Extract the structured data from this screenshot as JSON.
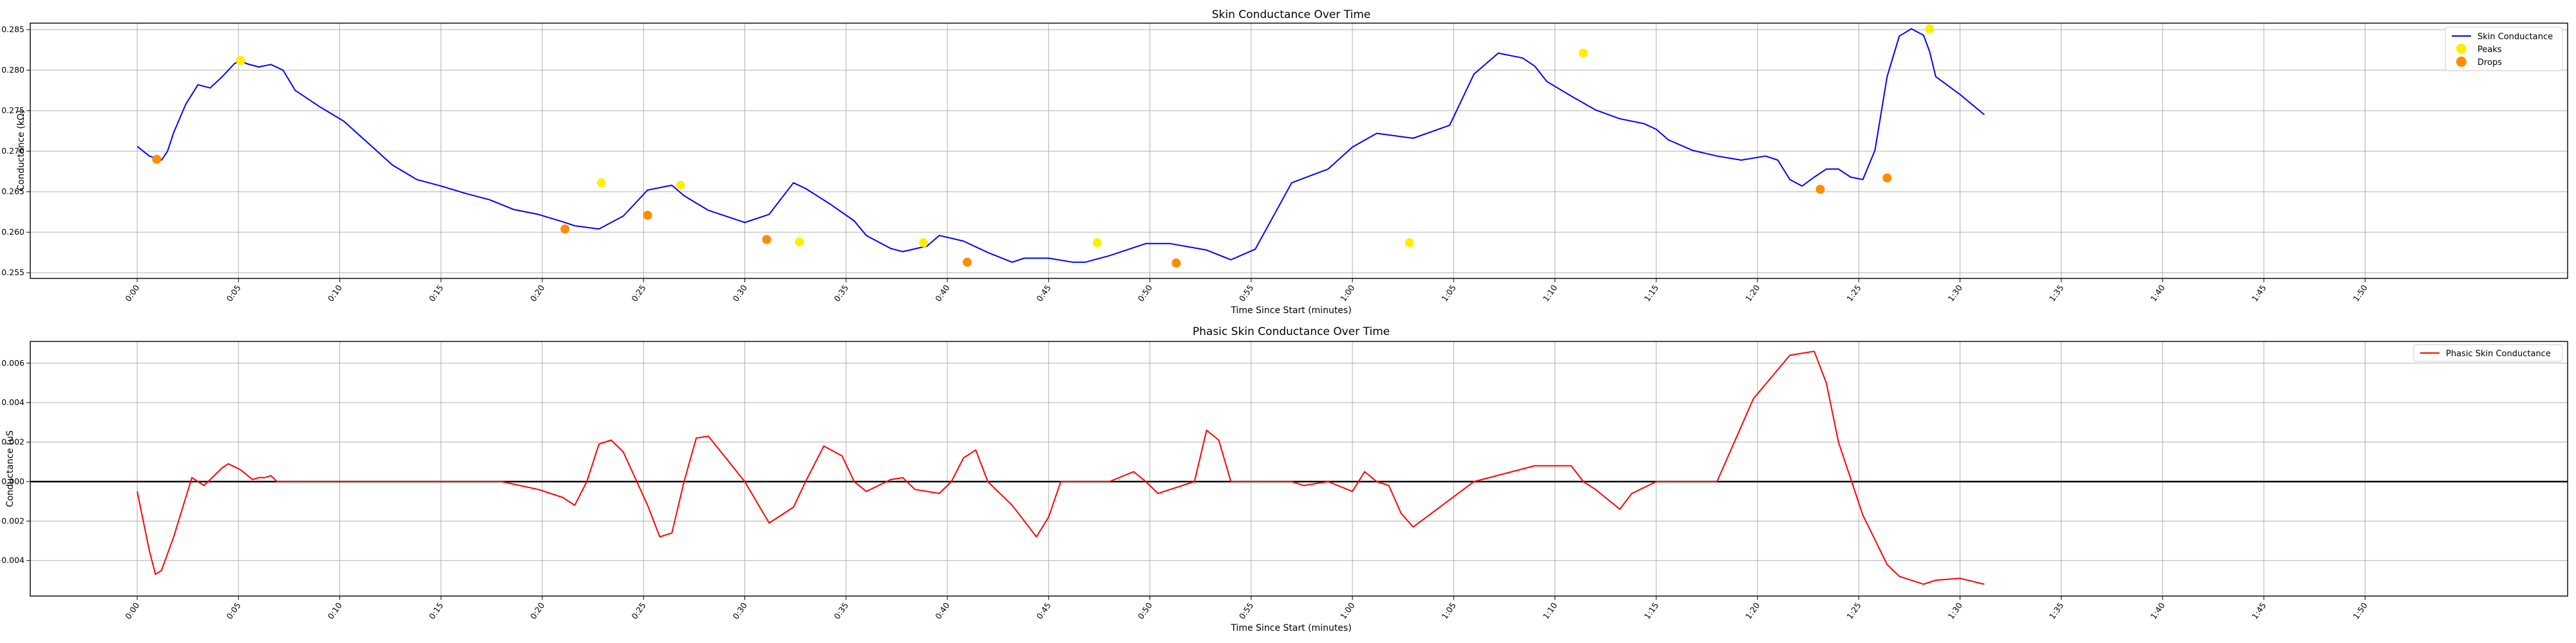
{
  "chart_data": [
    {
      "type": "line",
      "title": "Skin Conductance Over Time",
      "xlabel": "Time Since Start (minutes)",
      "ylabel": "Conductance (kΩ)",
      "xlim": [
        -0.088,
        2.0
      ],
      "ylim": [
        0.2543,
        0.2858
      ],
      "grid": true,
      "legend": "top-right",
      "x_ticks": [
        "0:00",
        "0:05",
        "0:10",
        "0:15",
        "0:20",
        "0:25",
        "0:30",
        "0:35",
        "0:40",
        "0:45",
        "0:50",
        "0:55",
        "1:00",
        "1:05",
        "1:10",
        "1:15",
        "1:20",
        "1:25",
        "1:30",
        "1:35",
        "1:40",
        "1:45",
        "1:50"
      ],
      "y_ticks": [
        "0.255",
        "0.260",
        "0.265",
        "0.270",
        "0.275",
        "0.280",
        "0.285"
      ],
      "colors": {
        "line": "#0000ff",
        "peaks": "#ffee00",
        "drops": "#ff8c00"
      },
      "series": [
        {
          "name": "Skin Conductance",
          "x": [
            0.0,
            0.01,
            0.02,
            0.025,
            0.03,
            0.04,
            0.05,
            0.06,
            0.07,
            0.08,
            0.085,
            0.09,
            0.1,
            0.11,
            0.12,
            0.13,
            0.15,
            0.17,
            0.19,
            0.21,
            0.23,
            0.25,
            0.27,
            0.29,
            0.31,
            0.33,
            0.35,
            0.36,
            0.38,
            0.4,
            0.42,
            0.44,
            0.45,
            0.47,
            0.5,
            0.52,
            0.54,
            0.55,
            0.57,
            0.59,
            0.6,
            0.62,
            0.63,
            0.65,
            0.66,
            0.68,
            0.7,
            0.72,
            0.73,
            0.75,
            0.77,
            0.78,
            0.8,
            0.83,
            0.85,
            0.88,
            0.9,
            0.92,
            0.95,
            0.98,
            1.0,
            1.02,
            1.05,
            1.08,
            1.1,
            1.12,
            1.14,
            1.15,
            1.16,
            1.18,
            1.2,
            1.22,
            1.24,
            1.25,
            1.26,
            1.28,
            1.3,
            1.32,
            1.34,
            1.35,
            1.36,
            1.37,
            1.38,
            1.39,
            1.4,
            1.41,
            1.42,
            1.43,
            1.44,
            1.45,
            1.46,
            1.47,
            1.475,
            1.48,
            1.5,
            1.52
          ],
          "y": [
            0.2706,
            0.2694,
            0.2689,
            0.27,
            0.2723,
            0.2758,
            0.2782,
            0.2778,
            0.2792,
            0.2808,
            0.2812,
            0.2808,
            0.2804,
            0.2807,
            0.28,
            0.2775,
            0.2755,
            0.2737,
            0.271,
            0.2683,
            0.2665,
            0.2657,
            0.2648,
            0.264,
            0.2628,
            0.2622,
            0.2613,
            0.2608,
            0.2604,
            0.262,
            0.2652,
            0.2658,
            0.2645,
            0.2627,
            0.2612,
            0.2622,
            0.2661,
            0.2654,
            0.2635,
            0.2614,
            0.2596,
            0.258,
            0.2576,
            0.2583,
            0.2596,
            0.2589,
            0.2575,
            0.2563,
            0.2568,
            0.2568,
            0.2563,
            0.2563,
            0.2571,
            0.2586,
            0.2586,
            0.2578,
            0.2566,
            0.2579,
            0.2661,
            0.2678,
            0.2705,
            0.2722,
            0.2716,
            0.2732,
            0.2795,
            0.2821,
            0.2815,
            0.2805,
            0.2786,
            0.2768,
            0.2751,
            0.274,
            0.2734,
            0.2727,
            0.2714,
            0.2701,
            0.2694,
            0.2689,
            0.2694,
            0.2689,
            0.2665,
            0.2657,
            0.2668,
            0.2678,
            0.2678,
            0.2668,
            0.2665,
            0.2701,
            0.2792,
            0.2842,
            0.2851,
            0.2843,
            0.2823,
            0.2792,
            0.277,
            0.2745
          ]
        },
        {
          "name": "Peaks",
          "marker": "circle",
          "x": [
            0.085,
            0.382,
            0.447,
            0.545,
            0.647,
            0.79,
            1.047,
            1.19,
            1.475
          ],
          "y": [
            0.2812,
            0.2661,
            0.2658,
            0.2588,
            0.2587,
            0.2587,
            0.2587,
            0.2821,
            0.2851
          ]
        },
        {
          "name": "Drops",
          "marker": "circle",
          "x": [
            0.016,
            0.352,
            0.42,
            0.518,
            0.683,
            0.855,
            1.385,
            1.44
          ],
          "y": [
            0.269,
            0.2604,
            0.2621,
            0.2591,
            0.2563,
            0.2562,
            0.2653,
            0.2667
          ]
        }
      ]
    },
    {
      "type": "line",
      "title": "Phasic Skin Conductance Over Time",
      "xlabel": "Time Since Start (minutes)",
      "ylabel": "Conductance (uS",
      "xlim": [
        -0.088,
        2.0
      ],
      "ylim": [
        -0.0058,
        0.0071
      ],
      "grid": true,
      "legend": "top-right",
      "x_ticks": [
        "0:00",
        "0:05",
        "0:10",
        "0:15",
        "0:20",
        "0:25",
        "0:30",
        "0:35",
        "0:40",
        "0:45",
        "0:50",
        "0:55",
        "1:00",
        "1:05",
        "1:10",
        "1:15",
        "1:20",
        "1:25",
        "1:30",
        "1:35",
        "1:40",
        "1:45",
        "1:50"
      ],
      "y_ticks": [
        "−0.004",
        "−0.002",
        "0.000",
        "0.002",
        "0.004",
        "0.006"
      ],
      "colors": {
        "line": "#ff0000",
        "zero_line": "#000000"
      },
      "series": [
        {
          "name": "Phasic Skin Conductance",
          "x": [
            0.0,
            0.01,
            0.015,
            0.02,
            0.03,
            0.04,
            0.045,
            0.05,
            0.055,
            0.06,
            0.07,
            0.075,
            0.085,
            0.095,
            0.1,
            0.105,
            0.11,
            0.115,
            0.2,
            0.3,
            0.33,
            0.35,
            0.36,
            0.37,
            0.38,
            0.39,
            0.4,
            0.42,
            0.43,
            0.44,
            0.45,
            0.46,
            0.47,
            0.5,
            0.52,
            0.54,
            0.55,
            0.565,
            0.58,
            0.59,
            0.6,
            0.62,
            0.63,
            0.64,
            0.66,
            0.67,
            0.68,
            0.69,
            0.7,
            0.72,
            0.74,
            0.75,
            0.76,
            0.77,
            0.8,
            0.82,
            0.83,
            0.84,
            0.87,
            0.88,
            0.89,
            0.9,
            0.93,
            0.95,
            0.96,
            0.98,
            1.0,
            1.01,
            1.02,
            1.03,
            1.04,
            1.05,
            1.1,
            1.15,
            1.18,
            1.19,
            1.2,
            1.22,
            1.23,
            1.25,
            1.3,
            1.33,
            1.36,
            1.38,
            1.39,
            1.4,
            1.42,
            1.44,
            1.445,
            1.45,
            1.46,
            1.47,
            1.475,
            1.48,
            1.5,
            1.52
          ],
          "y": [
            -0.0005,
            -0.0035,
            -0.0047,
            -0.0045,
            -0.0028,
            -0.0008,
            0.0002,
            0.0,
            -0.0002,
            0.0001,
            0.0007,
            0.0009,
            0.0006,
            0.0001,
            0.0002,
            0.0002,
            0.0003,
            0.0,
            0.0,
            0.0,
            -0.0004,
            -0.0008,
            -0.0012,
            0.0,
            0.0019,
            0.0021,
            0.0015,
            -0.0012,
            -0.0028,
            -0.0026,
            0.0,
            0.0022,
            0.0023,
            0.0,
            -0.0021,
            -0.0013,
            0.0,
            0.0018,
            0.0013,
            0.0,
            -0.0005,
            0.0001,
            0.0002,
            -0.0004,
            -0.0006,
            0.0,
            0.0012,
            0.0016,
            0.0,
            -0.0012,
            -0.0028,
            -0.0018,
            0.0,
            0.0,
            0.0,
            0.0005,
            0.0,
            -0.0006,
            0.0,
            0.0026,
            0.0021,
            0.0,
            0.0,
            0.0,
            -0.0002,
            0.0,
            -0.0005,
            0.0005,
            0.0,
            -0.0002,
            -0.0016,
            -0.0023,
            0.0,
            0.0008,
            0.0008,
            0.0,
            -0.0004,
            -0.0014,
            -0.0006,
            0.0,
            0.0,
            0.0042,
            0.0064,
            0.0066,
            0.005,
            0.002,
            -0.0017,
            -0.0042,
            -0.0045,
            -0.0048,
            -0.005,
            -0.0052,
            -0.0051,
            -0.005,
            -0.0049,
            -0.0052
          ]
        }
      ]
    }
  ]
}
